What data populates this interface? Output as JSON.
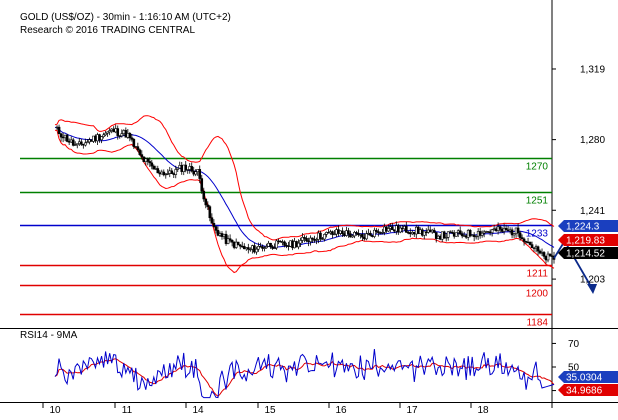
{
  "header": {
    "title": "GOLD (US$/OZ) - 30min - 1:16:10 AM (UTC+2)",
    "credit": "Research © 2016 TRADING CENTRAL"
  },
  "chart_data": [
    {
      "type": "candlestick",
      "title": "GOLD (US$/OZ) - 30min - 1:16:10 AM (UTC+2)",
      "xlabel": "",
      "ylabel": "",
      "x_tick_labels": [
        "10",
        "11",
        "14",
        "15",
        "16",
        "17",
        "18"
      ],
      "y_ticks": [
        1203,
        1241,
        1280,
        1319
      ],
      "y_tick_labels": [
        "1,203",
        "1,241",
        "1,280",
        "1,319"
      ],
      "ylim": [
        1176,
        1335
      ],
      "grid": false,
      "price_path": [
        {
          "t": 0.0,
          "p": 1286
        },
        {
          "t": 0.3,
          "p": 1276
        },
        {
          "t": 0.5,
          "p": 1280
        },
        {
          "t": 0.8,
          "p": 1285
        },
        {
          "t": 1.0,
          "p": 1283
        },
        {
          "t": 1.2,
          "p": 1270
        },
        {
          "t": 1.4,
          "p": 1263
        },
        {
          "t": 1.6,
          "p": 1261
        },
        {
          "t": 1.8,
          "p": 1265
        },
        {
          "t": 2.0,
          "p": 1262
        },
        {
          "t": 2.1,
          "p": 1246
        },
        {
          "t": 2.2,
          "p": 1232
        },
        {
          "t": 2.4,
          "p": 1224
        },
        {
          "t": 2.7,
          "p": 1219
        },
        {
          "t": 3.0,
          "p": 1222
        },
        {
          "t": 3.3,
          "p": 1222
        },
        {
          "t": 3.6,
          "p": 1226
        },
        {
          "t": 4.0,
          "p": 1229
        },
        {
          "t": 4.3,
          "p": 1226
        },
        {
          "t": 4.6,
          "p": 1231
        },
        {
          "t": 5.0,
          "p": 1230
        },
        {
          "t": 5.4,
          "p": 1227
        },
        {
          "t": 5.8,
          "p": 1228
        },
        {
          "t": 6.2,
          "p": 1230
        },
        {
          "t": 6.5,
          "p": 1229
        },
        {
          "t": 6.7,
          "p": 1221
        },
        {
          "t": 6.85,
          "p": 1215
        },
        {
          "t": 7.0,
          "p": 1214.5
        }
      ],
      "series": [
        {
          "name": "Bollinger upper",
          "color": "#ff0000"
        },
        {
          "name": "Bollinger lower",
          "color": "#ff0000"
        },
        {
          "name": "Moving average",
          "color": "#0000cc"
        }
      ],
      "levels": [
        {
          "value": 1270,
          "label": "1270",
          "color": "#008000"
        },
        {
          "value": 1251,
          "label": "1251",
          "color": "#008000"
        },
        {
          "value": 1233,
          "label": "1233",
          "color": "#0000cc"
        },
        {
          "value": 1211,
          "label": "1211",
          "color": "#e00000"
        },
        {
          "value": 1200,
          "label": "1200",
          "color": "#e00000"
        },
        {
          "value": 1184,
          "label": "1184",
          "color": "#e00000"
        }
      ],
      "price_tags": [
        {
          "label": "1,224.3",
          "value": 1224.3,
          "color": "#1a3fbf"
        },
        {
          "label": "1,219.83",
          "value": 1219.83,
          "color": "#e00000"
        },
        {
          "label": "1,214.52",
          "value": 1214.52,
          "color": "#000000"
        }
      ],
      "forecast_arrow": [
        {
          "t": 7.0,
          "p": 1214.5
        },
        {
          "t": 7.15,
          "p": 1224
        },
        {
          "t": 7.55,
          "p": 1197
        }
      ]
    },
    {
      "type": "line",
      "title": "RSI14 - 9MA",
      "y_ticks": [
        30,
        50,
        70
      ],
      "y_tick_labels": [
        "30",
        "50",
        "70"
      ],
      "ylim": [
        22,
        78
      ],
      "series": [
        {
          "name": "RSI14",
          "color": "#0000cc",
          "last": 35.0304
        },
        {
          "name": "9MA",
          "color": "#e00000",
          "last": 34.9686
        }
      ],
      "value_tags": [
        {
          "label": "35.0304",
          "value": 35.0304,
          "color": "#1a3fbf"
        },
        {
          "label": "34.9686",
          "value": 34.9686,
          "color": "#e00000"
        }
      ]
    }
  ]
}
